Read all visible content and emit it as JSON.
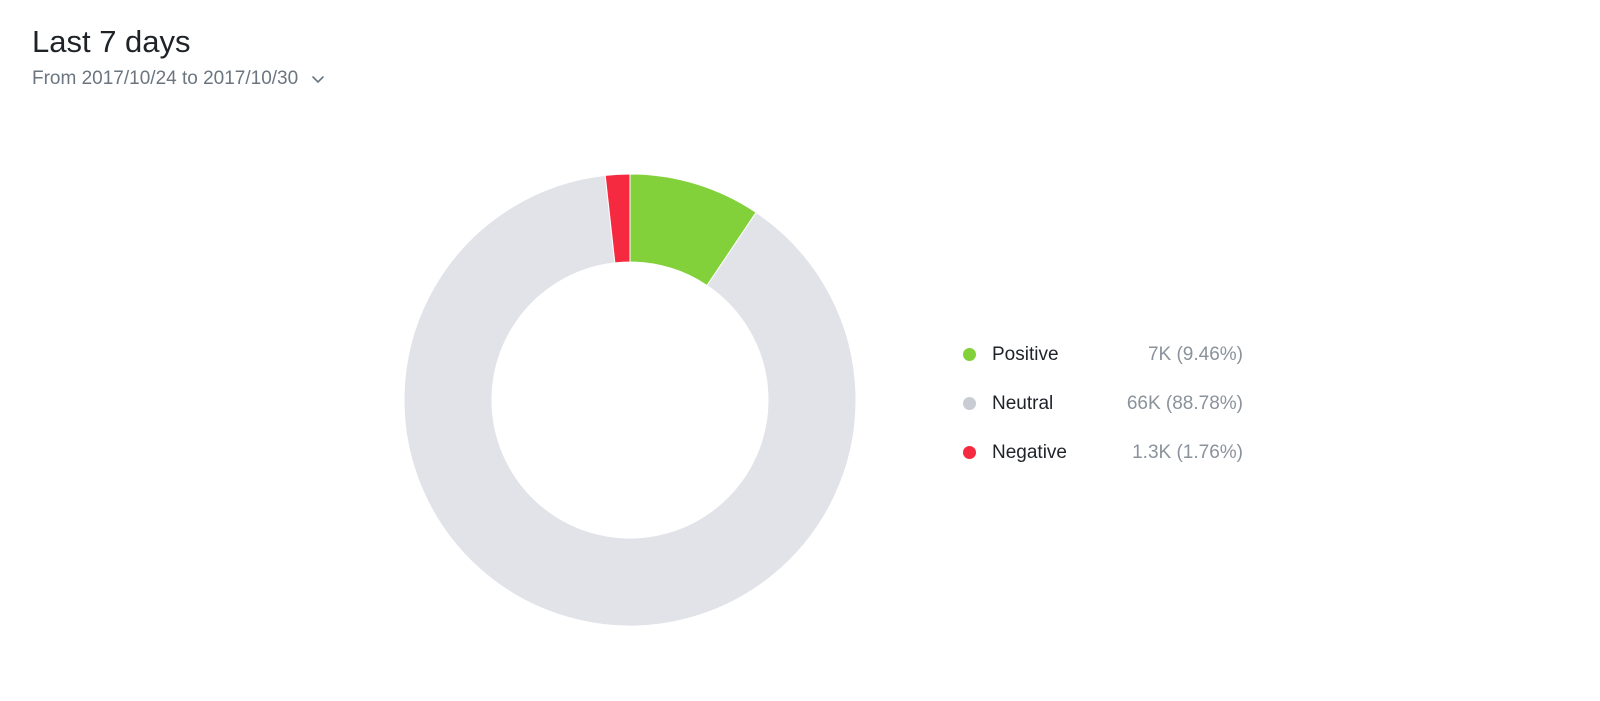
{
  "header": {
    "title": "Last 7 days",
    "range_label": "From 2017/10/24 to 2017/10/30",
    "range_icon": "chevron-down-icon"
  },
  "chart_data": {
    "type": "pie",
    "variant": "donut",
    "categories": [
      "Positive",
      "Neutral",
      "Negative"
    ],
    "values": [
      7000,
      66000,
      1300
    ],
    "percentages": [
      9.46,
      88.78,
      1.76
    ],
    "colors": [
      "#82d13a",
      "#e1e3e9",
      "#f5293f"
    ],
    "value_labels": [
      "7K (9.46%)",
      "66K (88.78%)",
      "1.3K (1.76%)"
    ],
    "legend_placement": "right"
  }
}
